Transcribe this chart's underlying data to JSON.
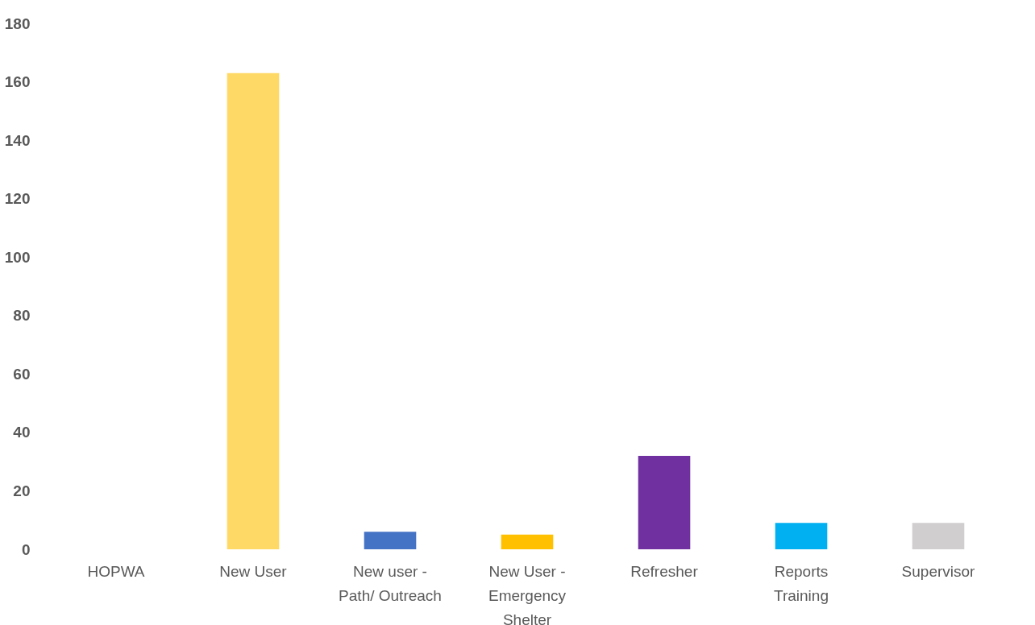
{
  "chart_data": {
    "type": "bar",
    "categories": [
      "HOPWA",
      "New User",
      "New user - Path/ Outreach",
      "New User - Emergency Shelter",
      "Refresher",
      "Reports Training",
      "Supervisor"
    ],
    "values": [
      0,
      163,
      6,
      5,
      32,
      9,
      9
    ],
    "colors": [
      "#ffd966",
      "#ffd966",
      "#4472c4",
      "#ffc000",
      "#7030a0",
      "#00b0f0",
      "#d0cece"
    ],
    "ylim": [
      0,
      180
    ],
    "yticks": [
      0,
      20,
      40,
      60,
      80,
      100,
      120,
      140,
      160,
      180
    ],
    "grid": false
  }
}
